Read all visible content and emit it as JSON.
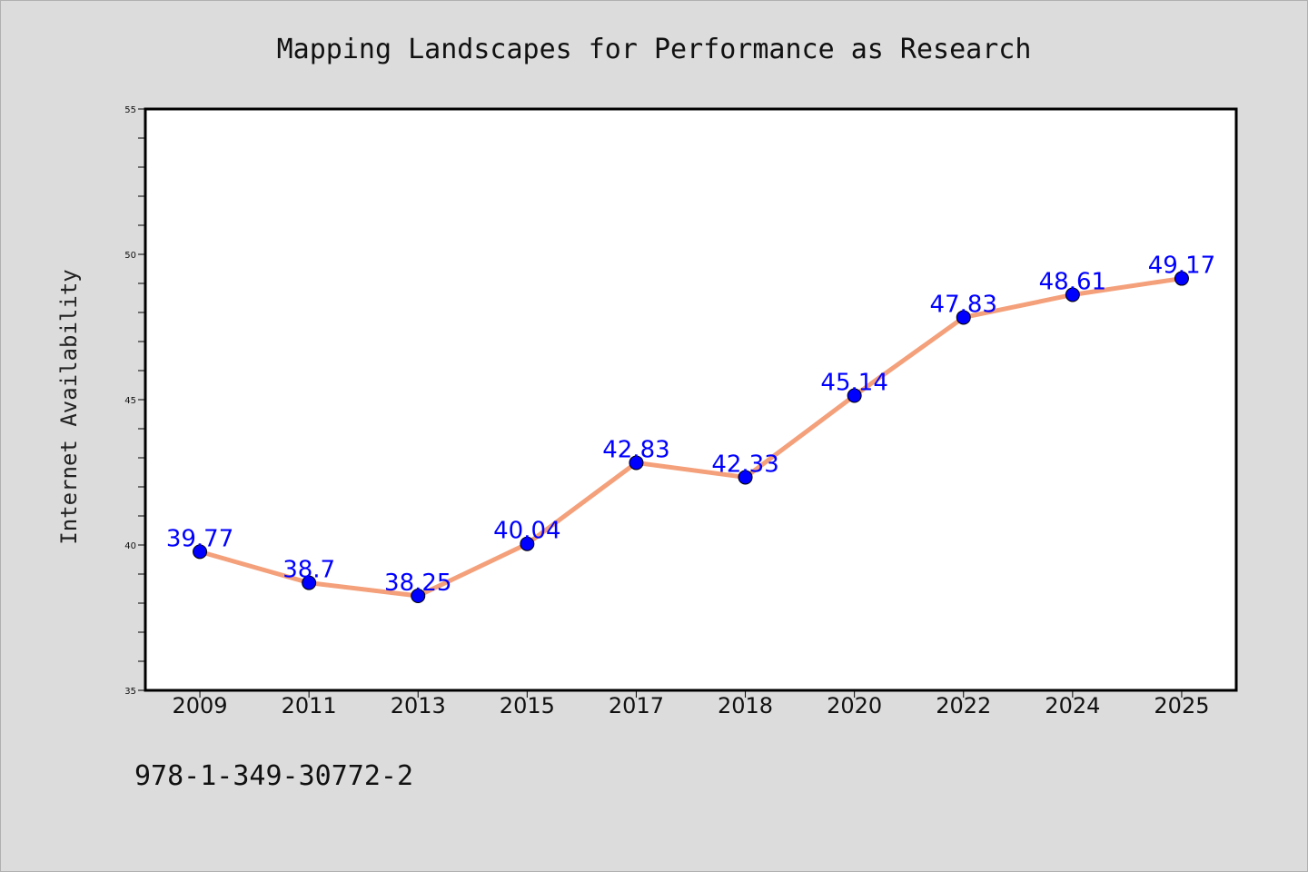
{
  "chart_data": {
    "type": "line",
    "title": "Mapping Landscapes for Performance as Research",
    "xlabel": "",
    "ylabel": "Internet Availability",
    "categories": [
      "2009",
      "2011",
      "2013",
      "2015",
      "2017",
      "2018",
      "2020",
      "2022",
      "2024",
      "2025"
    ],
    "series": [
      {
        "values": [
          39.77,
          38.7,
          38.25,
          40.04,
          42.83,
          42.33,
          45.14,
          47.83,
          48.61,
          49.17
        ],
        "labels": [
          "39.77",
          "38.7",
          "38.25",
          "40.04",
          "42.83",
          "42.33",
          "45.14",
          "47.83",
          "48.61",
          "49.17"
        ],
        "line_color": "#f4a07a",
        "marker_color": "#0000ff"
      }
    ],
    "ylim": [
      35,
      55
    ],
    "yticks": [
      "35",
      "40",
      "45",
      "50",
      "55"
    ],
    "grid": false,
    "legend": "none",
    "footer": "978-1-349-30772-2"
  }
}
